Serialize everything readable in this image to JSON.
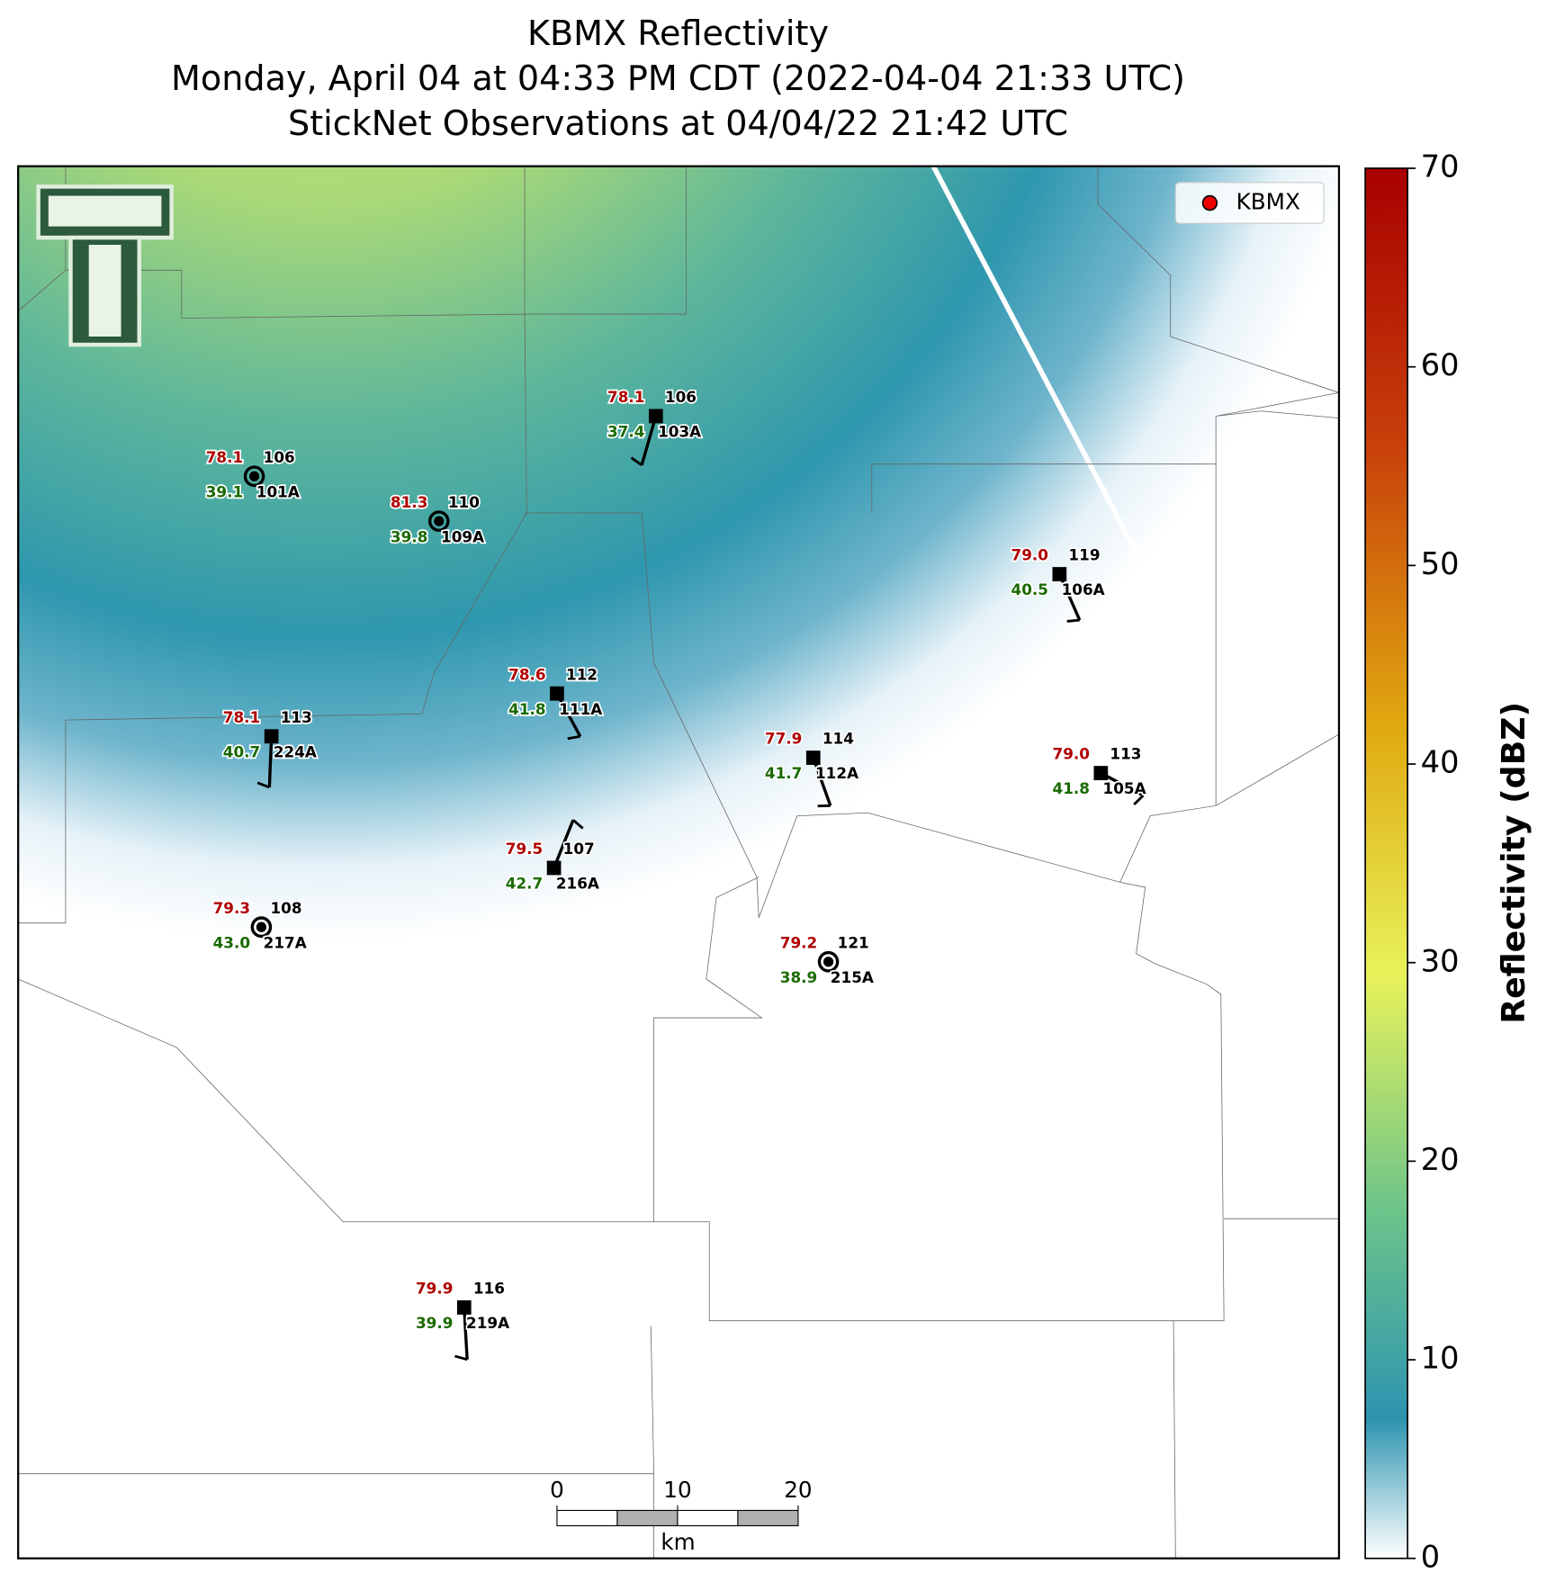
{
  "header": {
    "title_lines": [
      "KBMX Reflectivity",
      "Monday, April 04 at 04:33 PM CDT (2022-04-04 21:33 UTC)",
      "StickNet Observations at 04/04/22 21:42 UTC"
    ]
  },
  "legend": {
    "label": "KBMX"
  },
  "stations": [
    {
      "temperature": "78.1",
      "pressure": "106",
      "dewpoint": "39.1",
      "id": "101A"
    },
    {
      "temperature": "81.3",
      "pressure": "110",
      "dewpoint": "39.8",
      "id": "109A"
    },
    {
      "temperature": "78.1",
      "pressure": "106",
      "dewpoint": "37.4",
      "id": "103A"
    },
    {
      "temperature": "79.0",
      "pressure": "119",
      "dewpoint": "40.5",
      "id": "106A"
    },
    {
      "temperature": "78.6",
      "pressure": "112",
      "dewpoint": "41.8",
      "id": "111A"
    },
    {
      "temperature": "78.1",
      "pressure": "113",
      "dewpoint": "40.7",
      "id": "224A"
    },
    {
      "temperature": "77.9",
      "pressure": "114",
      "dewpoint": "41.7",
      "id": "112A"
    },
    {
      "temperature": "79.0",
      "pressure": "113",
      "dewpoint": "41.8",
      "id": "105A"
    },
    {
      "temperature": "79.5",
      "pressure": "107",
      "dewpoint": "42.7",
      "id": "216A"
    },
    {
      "temperature": "79.3",
      "pressure": "108",
      "dewpoint": "43.0",
      "id": "217A"
    },
    {
      "temperature": "79.2",
      "pressure": "121",
      "dewpoint": "38.9",
      "id": "215A"
    },
    {
      "temperature": "79.9",
      "pressure": "116",
      "dewpoint": "39.9",
      "id": "219A"
    }
  ],
  "colorbar": {
    "label": "Reflectivity (dBZ)",
    "lim": [
      0,
      70
    ],
    "ticks": [
      0,
      10,
      20,
      30,
      40,
      50,
      60,
      70
    ]
  },
  "scale_bar": {
    "ticks": [
      0,
      10,
      20
    ],
    "unit": "km"
  }
}
